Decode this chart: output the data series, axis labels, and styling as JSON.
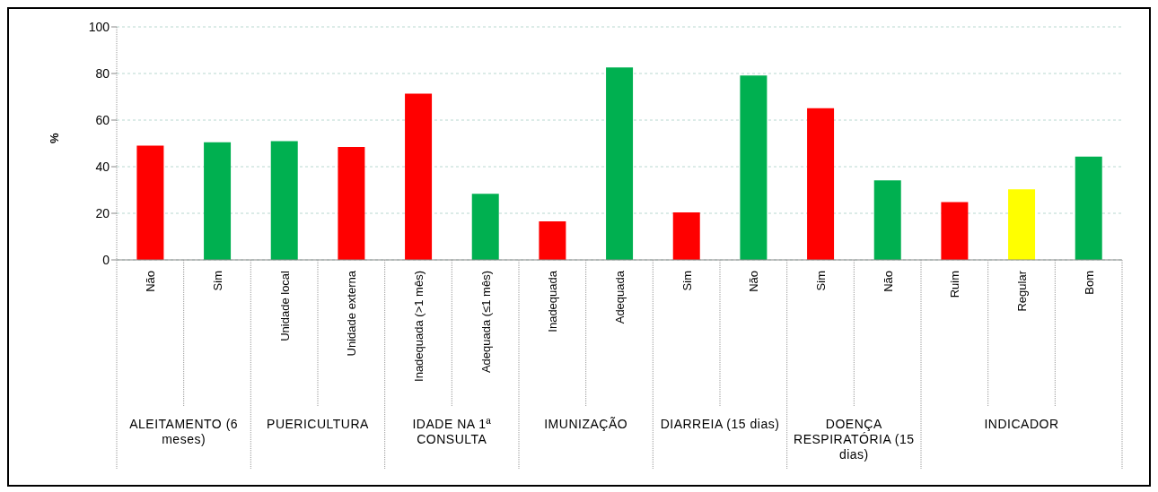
{
  "chart_data": {
    "type": "bar",
    "ylabel": "%",
    "categories": [
      "Não",
      "Sim",
      "Unidade local",
      "Unidade externa",
      "Inadequada (>1 mês)",
      "Adequada (≤1 mês)",
      "Inadequada",
      "Adequada",
      "Sim",
      "Não",
      "Sim",
      "Não",
      "Ruim",
      "Regular",
      "Bom"
    ],
    "values": [
      49,
      50.5,
      51,
      48.5,
      71.3,
      28.4,
      16.5,
      82.6,
      20.4,
      79.1,
      65.1,
      34.1,
      24.8,
      30.3,
      44.3
    ],
    "colors": [
      "#ff0000",
      "#00b050",
      "#00b050",
      "#ff0000",
      "#ff0000",
      "#00b050",
      "#ff0000",
      "#00b050",
      "#ff0000",
      "#00b050",
      "#ff0000",
      "#00b050",
      "#ff0000",
      "#ffff00",
      "#00b050"
    ],
    "ylim": [
      0,
      100
    ],
    "yticks": [
      0,
      20,
      40,
      60,
      80,
      100
    ],
    "grid": "y",
    "legend": false,
    "annotations": [
      "ALEITAMENTO (6 meses)",
      "PUERICULTURA",
      "IDADE NA 1ª CONSULTA",
      "IMUNIZAÇÃO",
      "DIARREIA (15 dias)",
      "DOENÇA RESPIRATÓRIA (15 dias)",
      "INDICADOR"
    ]
  }
}
